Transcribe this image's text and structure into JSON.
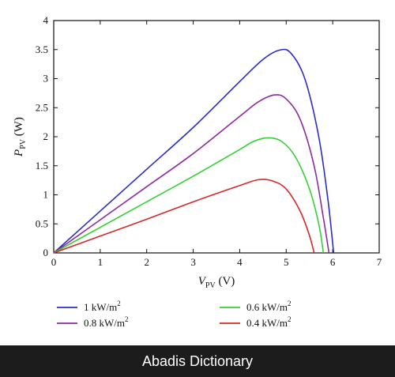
{
  "chart_data": {
    "type": "line",
    "xlabel": {
      "main": "V",
      "sub": "PV",
      "unit": " (V)"
    },
    "ylabel": {
      "main": "P",
      "sub": "PV",
      "unit": " (W)"
    },
    "xlim": [
      0,
      7
    ],
    "ylim": [
      0,
      4
    ],
    "xticks": [
      "0",
      "1",
      "2",
      "3",
      "4",
      "5",
      "6",
      "7"
    ],
    "yticks": [
      "0",
      "0.5",
      "1",
      "1.5",
      "2",
      "2.5",
      "3",
      "3.5",
      "4"
    ],
    "grid": false,
    "legend_position": "bottom",
    "series": [
      {
        "name": "1 kW/m",
        "sup": "2",
        "color": "#2b2bc8",
        "x": [
          0,
          1,
          2,
          3,
          4,
          4.5,
          4.85,
          5.1,
          5.4,
          5.7,
          5.9,
          6.02
        ],
        "y": [
          0,
          0.72,
          1.44,
          2.16,
          2.95,
          3.33,
          3.49,
          3.44,
          3.0,
          2.0,
          0.9,
          0
        ]
      },
      {
        "name": "0.8 kW/m",
        "sup": "2",
        "color": "#8c2a9e",
        "x": [
          0,
          1,
          2,
          3,
          4,
          4.4,
          4.75,
          5.0,
          5.3,
          5.6,
          5.8,
          5.92
        ],
        "y": [
          0,
          0.57,
          1.14,
          1.71,
          2.35,
          2.6,
          2.72,
          2.65,
          2.3,
          1.5,
          0.6,
          0
        ]
      },
      {
        "name": "0.6 kW/m",
        "sup": "2",
        "color": "#36d036",
        "x": [
          0,
          1,
          2,
          3,
          4,
          4.3,
          4.6,
          4.9,
          5.2,
          5.5,
          5.7,
          5.8
        ],
        "y": [
          0,
          0.44,
          0.88,
          1.32,
          1.78,
          1.92,
          1.98,
          1.92,
          1.65,
          1.1,
          0.5,
          0
        ]
      },
      {
        "name": "0.4 kW/m",
        "sup": "2",
        "color": "#d62828",
        "x": [
          0,
          1,
          2,
          3,
          4,
          4.4,
          4.7,
          5.0,
          5.3,
          5.5,
          5.6
        ],
        "y": [
          0,
          0.29,
          0.58,
          0.88,
          1.16,
          1.26,
          1.24,
          1.1,
          0.72,
          0.3,
          0
        ]
      }
    ]
  },
  "footer": {
    "text": "Abadis Dictionary"
  }
}
